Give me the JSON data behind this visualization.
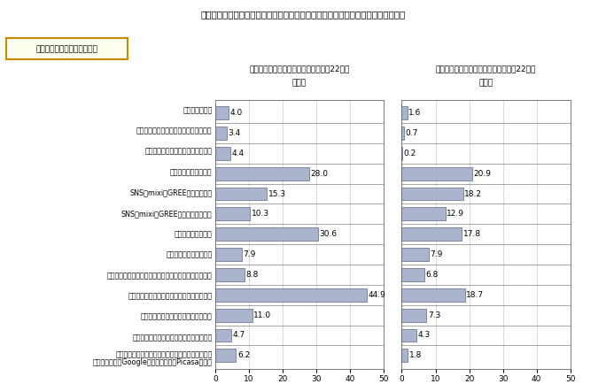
{
  "title": "パソコンと携帯電話との間で、利用されている機能・サービスに大きな差はない。",
  "legend_label": "「月に数回以上利用」の割合",
  "left_header": "パソコンの利用機能・サービス（平成22年）",
  "right_header": "携帯電話の利用機能・サービス（平成22年）",
  "unit": "（％）",
  "categories": [
    "チャットをする",
    "インスタントメッセンジャーを利用する",
    "スカイプなどの音声通信を利用する",
    "メールマガジンを読む",
    "SNS（mixi、GREEなど）を見る",
    "SNS（mixi、GREEなど）に書き込む",
    "掲示板の内容を読む",
    "掲示板に書き込みをする",
    "自分のブログ、ホームページを作ったり更新したりする",
    "他人（個人）のブログ、ホームページを見る",
    "ツイッター、アメーバなうなどを読む",
    "ツイッター、アメーバなうなどに書き込む",
    "インターネット上のサービスで自分の文書や写真を\n管理している（GoogleドキュメントやPicasaなど）"
  ],
  "pc_values": [
    4.0,
    3.4,
    4.4,
    28.0,
    15.3,
    10.3,
    30.6,
    7.9,
    8.8,
    44.9,
    11.0,
    4.7,
    6.2
  ],
  "mobile_values": [
    1.6,
    0.7,
    0.2,
    20.9,
    18.2,
    12.9,
    17.8,
    7.9,
    6.8,
    18.7,
    7.3,
    4.3,
    1.8
  ],
  "bar_color": "#aab4cc",
  "bar_edge_color": "#5a6a88",
  "xlim": [
    0,
    50
  ],
  "xticks": [
    0,
    10,
    20,
    30,
    40,
    50
  ],
  "legend_box_color": "#fffff0",
  "legend_box_edge": "#cc8800",
  "bg_color": "#ffffff",
  "grid_color": "#cccccc",
  "spine_color": "#666666"
}
